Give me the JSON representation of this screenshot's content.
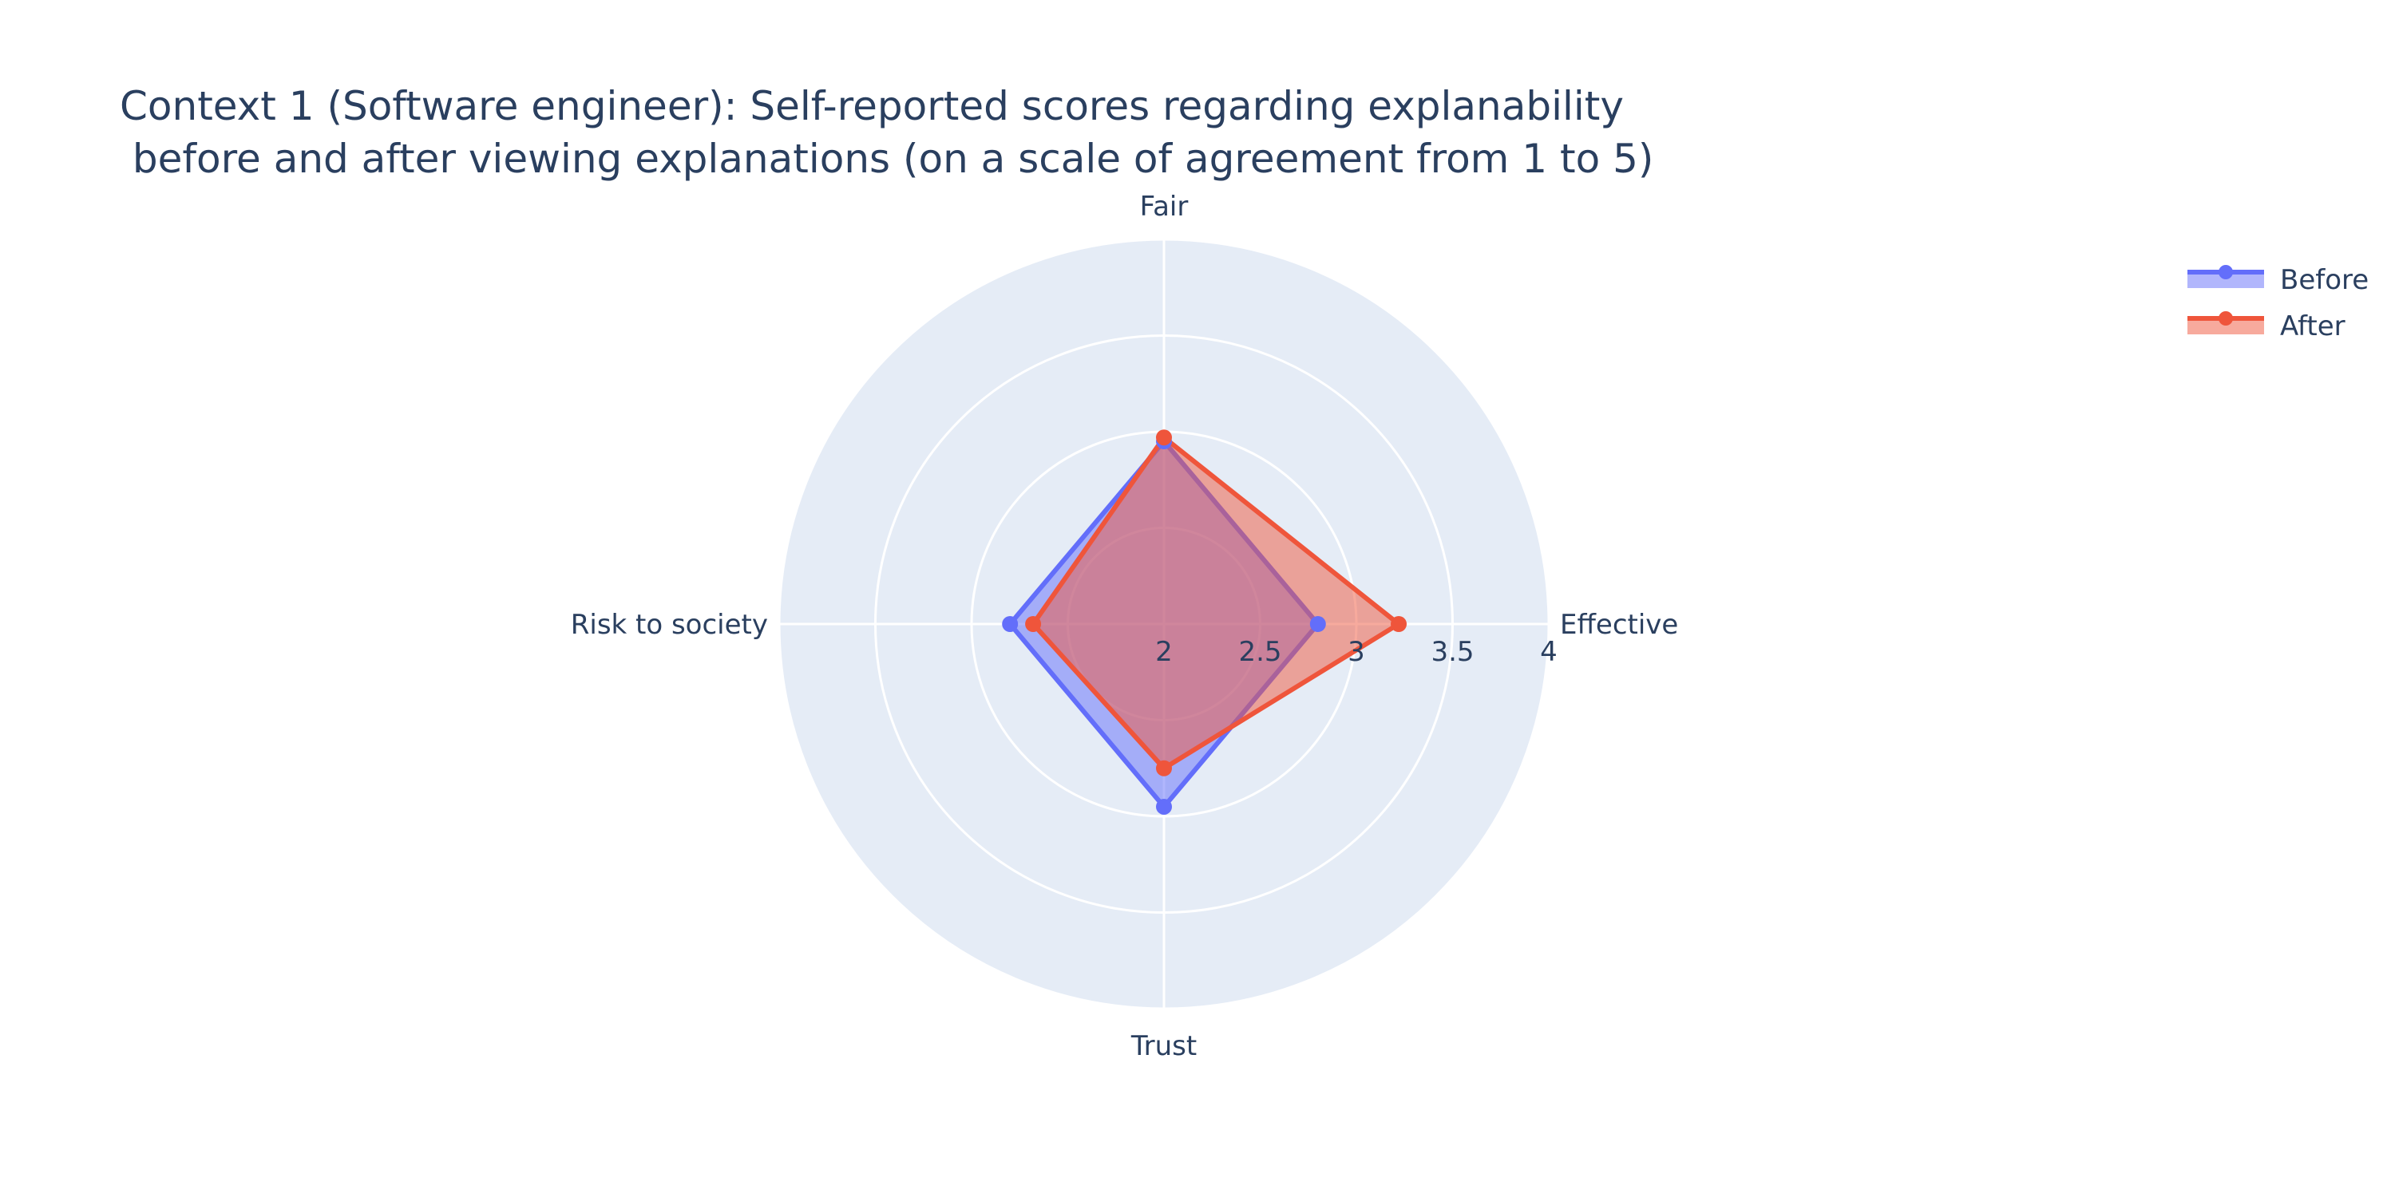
{
  "colors": {
    "before": "#636efa",
    "after": "#ef553b",
    "polar_bg": "#e5ecf6",
    "grid": "#ffffff",
    "text": "#2a3f5f"
  },
  "chart_data": {
    "type": "radar",
    "title_line1": "Context 1 (Software engineer): Self-reported scores regarding explanability",
    "title_line2": " before and after viewing explanations (on a scale of agreement from 1 to 5)",
    "categories": [
      "Fair",
      "Effective",
      "Trust",
      "Risk to society"
    ],
    "series": [
      {
        "name": "Before",
        "values": [
          2.95,
          2.8,
          2.95,
          2.8
        ]
      },
      {
        "name": "After",
        "values": [
          2.97,
          3.22,
          2.75,
          2.68
        ]
      }
    ],
    "radial_range": [
      2,
      4
    ],
    "radial_ticks": [
      "2",
      "2.5",
      "3",
      "3.5",
      "4"
    ],
    "grid": true,
    "legend_position": "top-right"
  }
}
